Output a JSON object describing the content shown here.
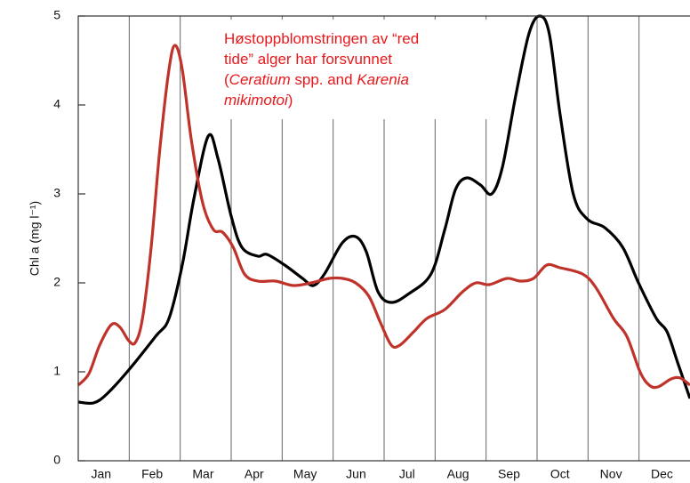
{
  "chart_data": {
    "type": "line",
    "ylabel": "Chl a (mg l⁻¹)",
    "categories": [
      "Jan",
      "Feb",
      "Mar",
      "Apr",
      "May",
      "Jun",
      "Jul",
      "Aug",
      "Sep",
      "Oct",
      "Nov",
      "Dec"
    ],
    "xlim": [
      0,
      12
    ],
    "xticks": [
      1,
      2,
      3,
      4,
      5,
      6,
      7,
      8,
      9,
      10,
      11
    ],
    "ylim": [
      0,
      5
    ],
    "yticks": [
      0,
      1,
      2,
      3,
      4,
      5
    ],
    "grid": true,
    "annotation": [
      [
        {
          "text": "Høstoppblomstringen av “red"
        }
      ],
      [
        {
          "text": "tide” alger har forsvunnet"
        }
      ],
      [
        {
          "text": "("
        },
        {
          "text": "Ceratium",
          "italic": true
        },
        {
          "text": " spp. and "
        },
        {
          "text": "Karenia",
          "italic": true
        }
      ],
      [
        {
          "text": "mikimotoi",
          "italic": true
        },
        {
          "text": ")"
        }
      ]
    ],
    "series": [
      {
        "color": "#000000",
        "x": [
          0,
          0.3,
          0.56,
          0.99,
          1.52,
          1.78,
          2.04,
          2.27,
          2.55,
          2.74,
          3.0,
          3.21,
          3.52,
          3.7,
          4.05,
          4.4,
          4.61,
          4.83,
          5.18,
          5.44,
          5.65,
          5.88,
          6.14,
          6.49,
          6.92,
          7.19,
          7.4,
          7.62,
          7.89,
          8.11,
          8.32,
          8.58,
          8.84,
          9.05,
          9.24,
          9.45,
          9.71,
          9.98,
          10.33,
          10.68,
          10.99,
          11.34,
          11.55,
          11.76,
          12
        ],
        "values": [
          0.66,
          0.65,
          0.75,
          1.02,
          1.4,
          1.6,
          2.2,
          2.95,
          3.65,
          3.4,
          2.75,
          2.4,
          2.3,
          2.32,
          2.2,
          2.05,
          1.97,
          2.1,
          2.45,
          2.52,
          2.35,
          1.9,
          1.78,
          1.88,
          2.1,
          2.6,
          3.05,
          3.18,
          3.1,
          3.0,
          3.3,
          4.1,
          4.8,
          5.0,
          4.8,
          3.9,
          3.0,
          2.72,
          2.62,
          2.4,
          2.0,
          1.6,
          1.45,
          1.1,
          0.7
        ]
      },
      {
        "color": "#c0332b",
        "x": [
          0,
          0.21,
          0.42,
          0.65,
          0.82,
          0.99,
          1.12,
          1.26,
          1.43,
          1.6,
          1.78,
          1.9,
          2.04,
          2.22,
          2.44,
          2.65,
          2.83,
          3.04,
          3.26,
          3.52,
          3.87,
          4.22,
          4.57,
          4.92,
          5.18,
          5.44,
          5.7,
          5.93,
          6.14,
          6.31,
          6.58,
          6.84,
          7.19,
          7.54,
          7.8,
          8.06,
          8.41,
          8.67,
          8.93,
          9.19,
          9.45,
          9.89,
          10.15,
          10.5,
          10.76,
          11.02,
          11.2,
          11.37,
          11.63,
          11.81,
          12
        ],
        "values": [
          0.85,
          0.98,
          1.3,
          1.53,
          1.5,
          1.35,
          1.33,
          1.6,
          2.4,
          3.5,
          4.4,
          4.67,
          4.4,
          3.6,
          2.9,
          2.6,
          2.57,
          2.4,
          2.1,
          2.02,
          2.02,
          1.97,
          2.0,
          2.05,
          2.05,
          2.0,
          1.85,
          1.55,
          1.3,
          1.3,
          1.45,
          1.6,
          1.7,
          1.9,
          2.0,
          1.98,
          2.05,
          2.02,
          2.05,
          2.2,
          2.17,
          2.1,
          1.95,
          1.6,
          1.4,
          1.0,
          0.85,
          0.83,
          0.92,
          0.93,
          0.85
        ]
      }
    ]
  }
}
